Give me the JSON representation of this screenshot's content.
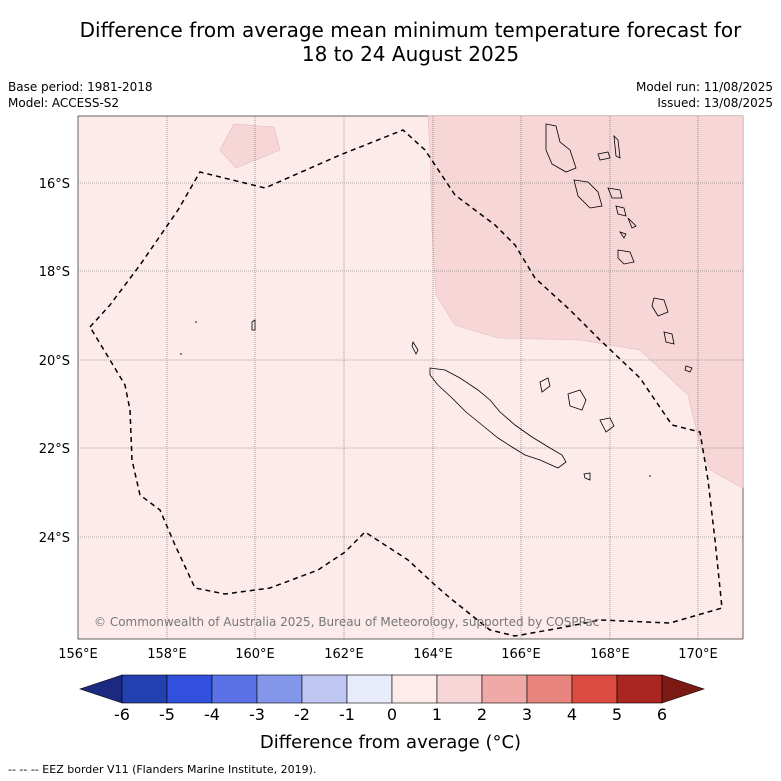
{
  "title_line1": "Difference from average mean minimum temperature forecast for",
  "title_line2": "18 to 24 August 2025",
  "meta_left": [
    "Base period: 1981-2018",
    "Model: ACCESS-S2"
  ],
  "meta_right": [
    "Model run: 11/08/2025",
    "Issued: 13/08/2025"
  ],
  "copyright": "© Commonwealth of Australia 2025, Bureau of Meteorology, supported by COSPPac",
  "lat_labels": [
    "16°S",
    "18°S",
    "20°S",
    "22°S",
    "24°S"
  ],
  "lon_labels": [
    "156°E",
    "158°E",
    "160°E",
    "162°E",
    "164°E",
    "166°E",
    "168°E",
    "170°E"
  ],
  "colorbar": {
    "ticks": [
      "-6",
      "-5",
      "-4",
      "-3",
      "-2",
      "-1",
      "0",
      "1",
      "2",
      "3",
      "4",
      "5",
      "6"
    ],
    "colors": [
      "#1b2a80",
      "#2340b0",
      "#3050dd",
      "#5a72e6",
      "#8496ea",
      "#bfc6f2",
      "#e8ebfa",
      "#fdecea",
      "#f6d6d6",
      "#efaaa8",
      "#e7847e",
      "#db4b40",
      "#aa2620",
      "#7b1a12"
    ],
    "label": "Difference from average (°C)"
  },
  "colors": {
    "bg_anomaly": "#fcebea",
    "warm_anomaly": "#f6d6d6"
  },
  "footnote": "--  --  -- EEZ border V11 (Flanders Marine Institute, 2019)."
}
